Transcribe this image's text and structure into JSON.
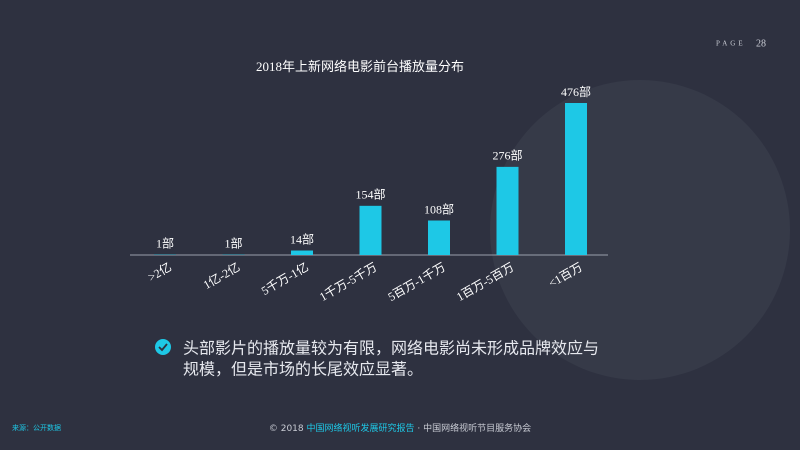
{
  "page": {
    "label": "PAGE",
    "number": "28"
  },
  "chart_data": {
    "type": "bar",
    "title": "2018年上新网络电影前台播放量分布",
    "categories": [
      ">2亿",
      "1亿-2亿",
      "5千万-1亿",
      "1千万-5千万",
      "5百万-1千万",
      "1百万-5百万",
      "<1百万"
    ],
    "values": [
      1,
      1,
      14,
      154,
      108,
      276,
      476
    ],
    "value_labels": [
      "1部",
      "1部",
      "14部",
      "154部",
      "108部",
      "276部",
      "476部"
    ],
    "color": "#1ec8e6"
  },
  "bullet": {
    "lines": [
      "头部影片的播放量较为有限，网络电影尚未形成品牌效应与",
      "规模，但是市场的长尾效应显著。"
    ]
  },
  "footer": {
    "source": "来源：公开数据",
    "copyright": "© 2018",
    "report": "中国网络视听发展研究报告",
    "org": "· 中国网络视听节目服务协会"
  }
}
